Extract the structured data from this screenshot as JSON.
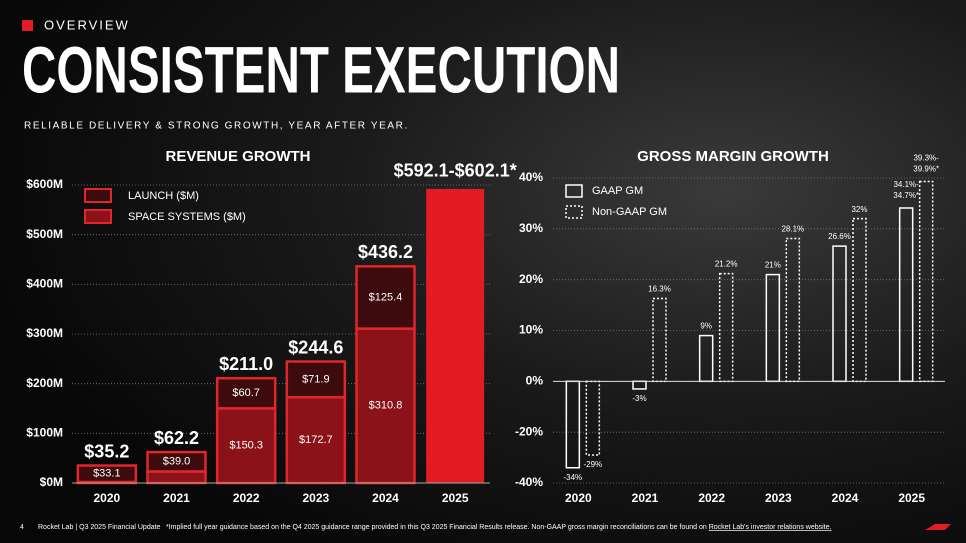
{
  "header": {
    "section": "OVERVIEW",
    "title": "CONSISTENT EXECUTION",
    "subtitle": "RELIABLE DELIVERY & STRONG GROWTH, YEAR AFTER YEAR."
  },
  "chart_data": [
    {
      "type": "stacked-bar",
      "title": "REVENUE GROWTH",
      "categories": [
        "2020",
        "2021",
        "2022",
        "2023",
        "2024",
        "2025"
      ],
      "series": [
        {
          "name": "LAUNCH ($M)",
          "color": "#3d0b0d",
          "values": [
            33.1,
            39.0,
            60.7,
            71.9,
            125.4,
            null
          ],
          "value_labels": [
            "$33.1",
            "$39.0",
            "$60.7",
            "$71.9",
            "$125.4",
            null
          ]
        },
        {
          "name": "SPACE SYSTEMS ($M)",
          "color": "#8b1218",
          "values": [
            2.1,
            23.2,
            150.3,
            172.7,
            310.8,
            null
          ],
          "value_labels": [
            null,
            null,
            "$150.3",
            "$172.7",
            "$310.8",
            null
          ]
        }
      ],
      "totals": {
        "values": [
          35.2,
          62.2,
          211.0,
          244.6,
          436.2,
          null
        ],
        "value_labels": [
          "$35.2",
          "$62.2",
          "$211.0",
          "$244.6",
          "$436.2",
          null
        ]
      },
      "guidance": {
        "values": [
          592.1,
          602.1
        ],
        "label": "$592.1-$602.1*",
        "color": "#e31b23"
      },
      "ylim": [
        0,
        600
      ],
      "yticks": [
        {
          "value": 0,
          "label": "$0M"
        },
        {
          "value": 100,
          "label": "$100M"
        },
        {
          "value": 200,
          "label": "$200M"
        },
        {
          "value": 300,
          "label": "$300M"
        },
        {
          "value": 400,
          "label": "$400M"
        },
        {
          "value": 500,
          "label": "$500M"
        },
        {
          "value": 600,
          "label": "$600M"
        }
      ],
      "grid": true,
      "outline_color": "#e0262b"
    },
    {
      "type": "grouped-bar",
      "title": "GROSS MARGIN GROWTH",
      "categories": [
        "2020",
        "2021",
        "2022",
        "2023",
        "2024",
        "2025"
      ],
      "series": [
        {
          "name": "GAAP GM",
          "color": "#ffffff",
          "dashed": false,
          "values": [
            -34,
            -3,
            9,
            21,
            26.6,
            34.1
          ],
          "value_labels": [
            "-34%",
            "-3%",
            "9%",
            "21%",
            "26.6%",
            "34.1%-"
          ],
          "guidance_high": {
            "value": 34.7,
            "label": "34.7%*"
          }
        },
        {
          "name": "Non-GAAP GM",
          "color": "#ffffff",
          "dashed": true,
          "values": [
            -29,
            16.3,
            21.2,
            28.1,
            32,
            39.3
          ],
          "value_labels": [
            "-29%",
            "16.3%",
            "21.2%",
            "28.1%",
            "32%",
            "39.3%-"
          ],
          "guidance_high": {
            "value": 39.9,
            "label": "39.9%*"
          }
        }
      ],
      "ylim": [
        -40,
        40
      ],
      "yticks": [
        {
          "value": -40,
          "label": "-40%"
        },
        {
          "value": -20,
          "label": "-20%"
        },
        {
          "value": 0,
          "label": "0%"
        },
        {
          "value": 10,
          "label": "10%"
        },
        {
          "value": 20,
          "label": "20%"
        },
        {
          "value": 30,
          "label": "30%"
        },
        {
          "value": 40,
          "label": "40%"
        }
      ],
      "grid": true
    }
  ],
  "footer": {
    "page": "4",
    "source": "Rocket Lab | Q3 2025 Financial Update",
    "note": "*Implied full year guidance based on the Q4 2025 guidance range provided in this Q3 2025 Financial Results release. Non-GAAP gross margin reconciliations can be found on",
    "link": "Rocket Lab's investor relations website."
  }
}
